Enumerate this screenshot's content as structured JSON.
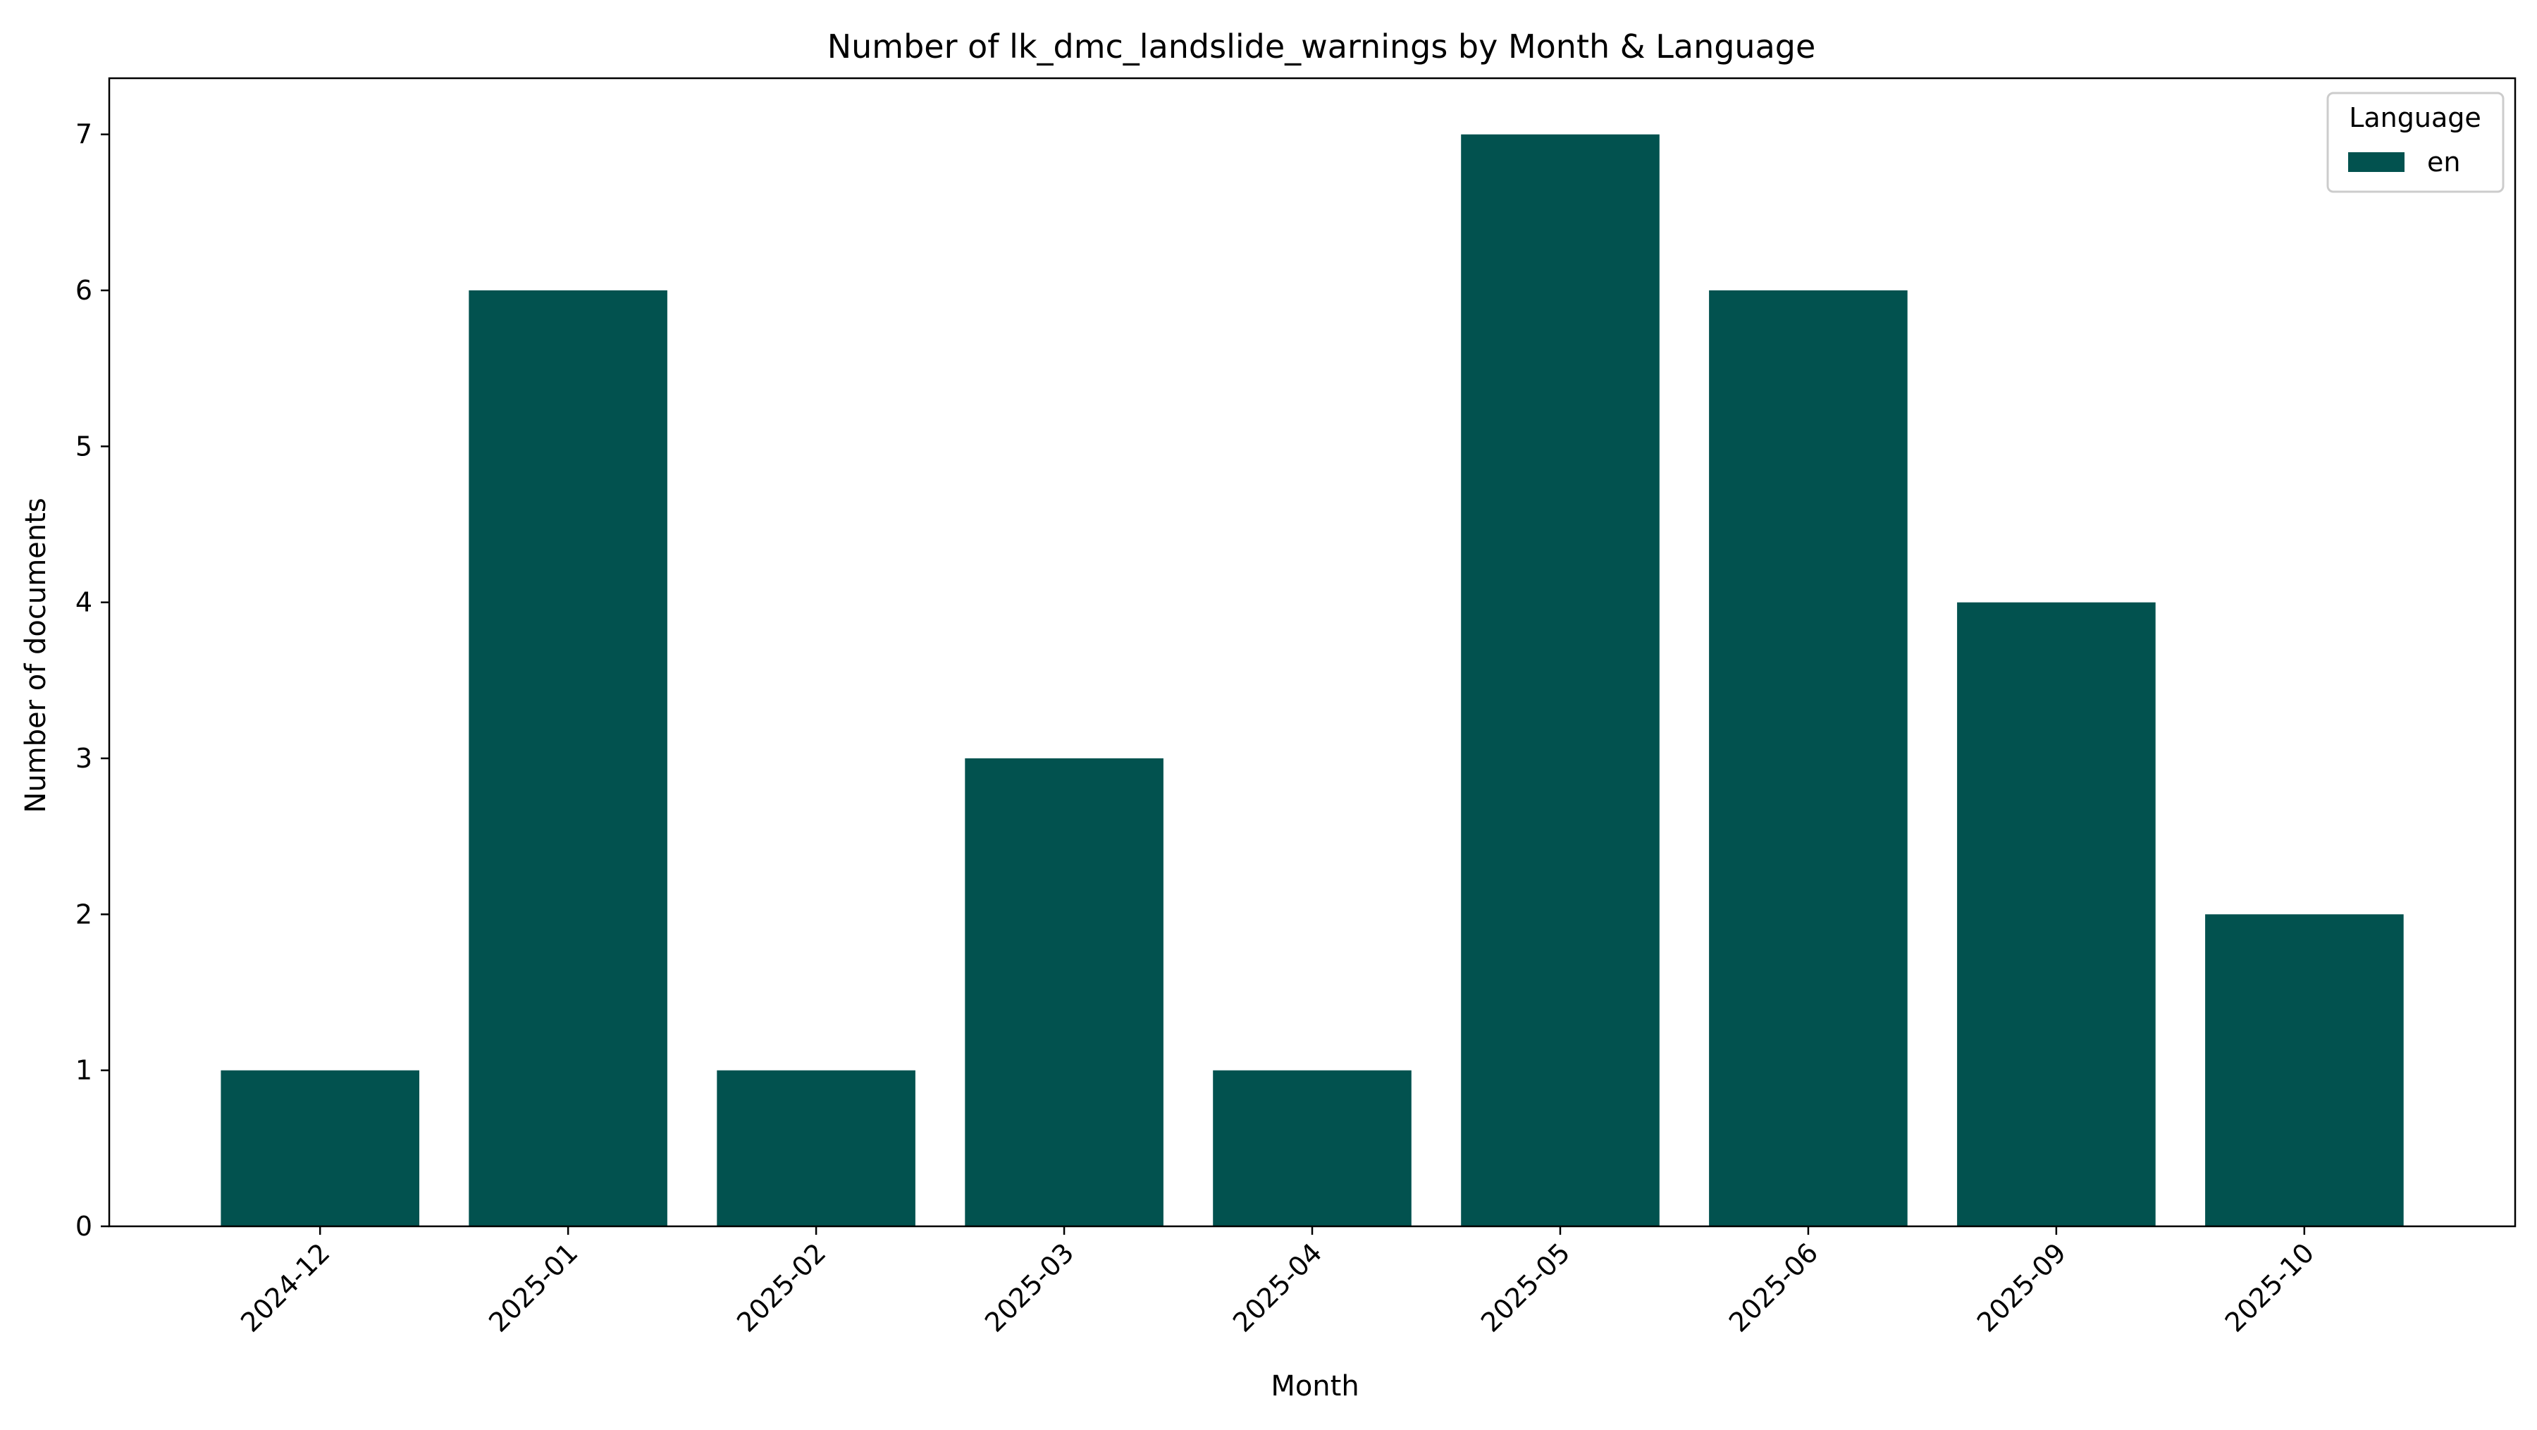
{
  "chart_data": {
    "type": "bar",
    "title": "Number of lk_dmc_landslide_warnings by Month & Language",
    "xlabel": "Month",
    "ylabel": "Number of documents",
    "categories": [
      "2024-12",
      "2025-01",
      "2025-02",
      "2025-03",
      "2025-04",
      "2025-05",
      "2025-06",
      "2025-09",
      "2025-10"
    ],
    "series": [
      {
        "name": "en",
        "values": [
          1,
          6,
          1,
          3,
          1,
          7,
          6,
          4,
          2
        ],
        "color": "#02524f"
      }
    ],
    "ylim": [
      0,
      7.36
    ],
    "yticks": [
      "0",
      "1",
      "2",
      "3",
      "4",
      "5",
      "6",
      "7"
    ],
    "legend": {
      "title": "Language",
      "placement": "top-right"
    },
    "grid": false
  }
}
